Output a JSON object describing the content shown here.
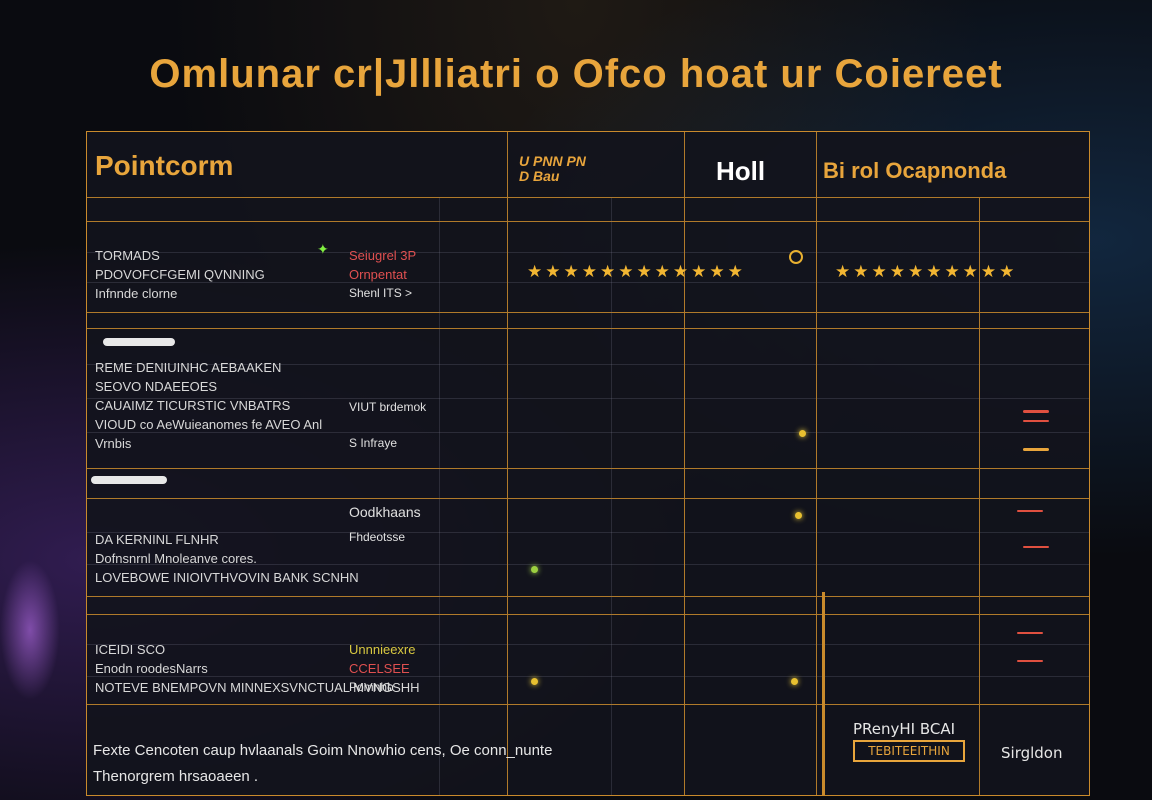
{
  "title": "Omlunar cr|Jllliatri o Ofco hoat ur Coiereet",
  "header": {
    "col0": "Pointcorm",
    "col1_line1": "U PNN PN",
    "col1_line2": "D Bau",
    "col2": "Holl",
    "col3": "Bi rol Ocapnonda"
  },
  "rows": [
    {
      "label_lines": [
        "TORMADS",
        "PDOVOFCFGEMI QVNNING",
        "Infnnde clorne"
      ],
      "mid_lines": [
        "Seiugrel 3P",
        "Ornpentat",
        "Shenl ITS >"
      ],
      "stars_a": "★★★★★★★★★★★★",
      "stars_b": "★★★★★★★★★★"
    },
    {
      "label_lines": [
        "REME DENIUINHC AEBAAKEN",
        "SEOVO NDAEEOES",
        "CAUAIMZ TICURSTIC VNBATRS",
        "VIOUD co AeWuieanomes fe AVEO Anl",
        "Vrnbis"
      ],
      "mid_lines": [
        "VIUT brdemok",
        "S Infraye"
      ]
    },
    {
      "label_lines": [
        "DA KERNINL FLNHR",
        "Dofnsnrnl Mnoleanve cores.",
        "LOVEBOWE INIOIVTHVOVIN BANK SCNHN"
      ],
      "mid_lines": [
        "Oodkhaans",
        "Fhdeotsse"
      ]
    },
    {
      "label_lines": [
        "ICEIDI SCO",
        "Enodn roodesNarrs",
        "NOTEVE BNEMPOVN MINNEXSVNCTUAL MVNGSHH"
      ],
      "mid_lines": [
        "Unnnieexre",
        "CCELSEE",
        "Pomnhb"
      ]
    }
  ],
  "footer": {
    "line1": "Fexte Cencoten caup hvlaanals Goim Nnowhio cens, Oe conn_nunte",
    "line2": "Thenorgrem hrsaoaeen .",
    "price_label": "PRenyHI BCAI",
    "price_button": "TEBITEEITHIN",
    "right_label": "Sirgldon"
  },
  "colors": {
    "accent": "#e8a53c",
    "grid": "#b07a2a",
    "star": "#f2b632",
    "danger": "#e05040"
  }
}
